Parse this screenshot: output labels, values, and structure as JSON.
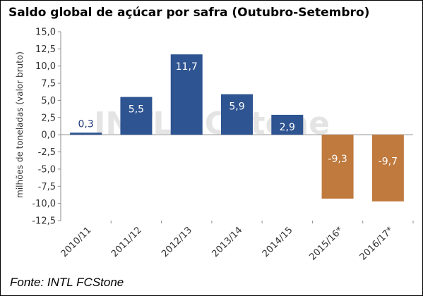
{
  "chart_data": {
    "type": "bar",
    "title": "Saldo global de açúcar por safra (Outubro-Setembro)",
    "ylabel": "milhões de toneladas (valor bruto)",
    "xlabel": "",
    "categories": [
      "2010/11",
      "2011/12",
      "2012/13",
      "2013/14",
      "2014/15",
      "2015/16*",
      "2016/17*"
    ],
    "values": [
      0.3,
      5.5,
      11.7,
      5.9,
      2.9,
      -9.3,
      -9.7
    ],
    "data_labels": [
      "0,3",
      "5,5",
      "11,7",
      "5,9",
      "2,9",
      "-9,3",
      "-9,7"
    ],
    "yticks": [
      "15,0",
      "12,5",
      "10,0",
      "7,5",
      "5,0",
      "2,5",
      "0,0",
      "-2,5",
      "-5,0",
      "-7,5",
      "-10,0",
      "-12,5"
    ],
    "ylim": [
      -12.5,
      15
    ],
    "grid": false,
    "legend": "none",
    "colors": {
      "positive": "#2e5491",
      "negative": "#c07a3e",
      "positive_label": "#1f3a78",
      "bar_label_inside": "#ffffff"
    }
  },
  "watermark": "INTL FCStone",
  "source": "Fonte: INTL FCStone"
}
